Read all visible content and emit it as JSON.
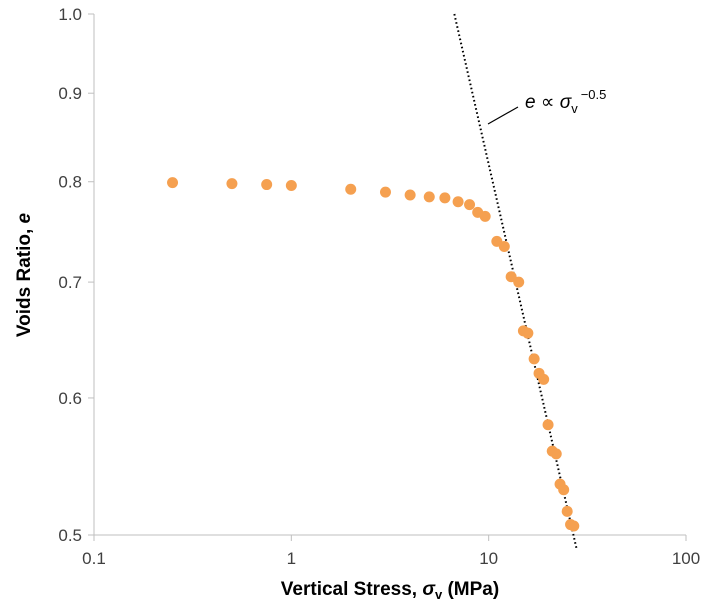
{
  "chart_data": {
    "type": "scatter",
    "x_scale": "log",
    "y_scale": "log",
    "xlim": [
      0.1,
      100
    ],
    "ylim": [
      0.5,
      1.0
    ],
    "x_ticks": [
      {
        "value": 0.1,
        "label": "0.1"
      },
      {
        "value": 1,
        "label": "1"
      },
      {
        "value": 10,
        "label": "10"
      },
      {
        "value": 100,
        "label": "100"
      }
    ],
    "y_ticks": [
      {
        "value": 0.5,
        "label": "0.5"
      },
      {
        "value": 0.6,
        "label": "0.6"
      },
      {
        "value": 0.7,
        "label": "0.7"
      },
      {
        "value": 0.8,
        "label": "0.8"
      },
      {
        "value": 0.9,
        "label": "0.9"
      },
      {
        "value": 1.0,
        "label": "1.0"
      }
    ],
    "xlabel": {
      "main": "Vertical Stress, ",
      "symbol": "σ",
      "sub": "v",
      "unit": " (MPa)"
    },
    "ylabel": {
      "main": "Voids Ratio, ",
      "symbol": "e"
    },
    "grid": false,
    "marker_color": "#f5a050",
    "line_color": "#000000",
    "series": [
      {
        "points": [
          [
            0.25,
            0.799
          ],
          [
            0.5,
            0.798
          ],
          [
            0.75,
            0.797
          ],
          [
            1.0,
            0.796
          ],
          [
            2.0,
            0.792
          ],
          [
            3.0,
            0.789
          ],
          [
            4.0,
            0.786
          ],
          [
            5.0,
            0.784
          ],
          [
            6.0,
            0.783
          ],
          [
            7.0,
            0.779
          ],
          [
            8.0,
            0.776
          ],
          [
            8.8,
            0.768
          ],
          [
            9.6,
            0.764
          ],
          [
            11.0,
            0.739
          ],
          [
            12.0,
            0.734
          ],
          [
            13.0,
            0.705
          ],
          [
            14.2,
            0.7
          ],
          [
            15.0,
            0.656
          ],
          [
            15.8,
            0.654
          ],
          [
            17.0,
            0.632
          ],
          [
            18.0,
            0.62
          ],
          [
            19.0,
            0.615
          ],
          [
            20.0,
            0.579
          ],
          [
            21.0,
            0.559
          ],
          [
            22.0,
            0.557
          ],
          [
            23.0,
            0.535
          ],
          [
            24.0,
            0.531
          ],
          [
            25.0,
            0.516
          ],
          [
            26.0,
            0.507
          ],
          [
            27.0,
            0.506
          ]
        ]
      }
    ],
    "fit_line": {
      "style": "dotted",
      "equation": {
        "lhs": "e",
        "rel": " ∝ ",
        "symbol": "σ",
        "sub": "v",
        "exp": "−0.5"
      },
      "exponent": -0.5,
      "points": [
        [
          6.7,
          1.0
        ],
        [
          28.0,
          0.49
        ]
      ]
    }
  }
}
